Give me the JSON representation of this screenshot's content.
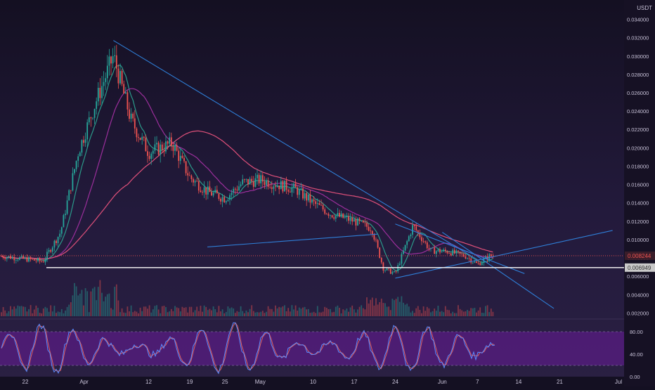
{
  "currency": "USDT",
  "price_ticks": [
    "0.034000",
    "0.032000",
    "0.030000",
    "0.028000",
    "0.026000",
    "0.024000",
    "0.022000",
    "0.020000",
    "0.018000",
    "0.016000",
    "0.014000",
    "0.012000",
    "0.010000",
    "0.008000",
    "0.006000",
    "0.004000",
    "0.002000"
  ],
  "osc_ticks": [
    "80.00",
    "40.00",
    "0.00"
  ],
  "date_ticks": [
    "22",
    "Apr",
    "12",
    "19",
    "25",
    "May",
    "10",
    "17",
    "24",
    "Jun",
    "7",
    "14",
    "21",
    "Jul"
  ],
  "current_price_label": "0.008244",
  "horizontal_level_label": "0.006949",
  "colors": {
    "background": "#1a1530",
    "candle_up": "#26a69a",
    "candle_down": "#ef5350",
    "trendline": "#2f7fd8",
    "ma_short": "#2b9a8a",
    "ma_mid": "#9c2f9c",
    "ma_long": "#e0507a",
    "horizontal_line": "#ffffff",
    "osc_band": "#6a1b9a",
    "osc_k": "#5b8cff",
    "osc_d": "#e06060"
  },
  "chart_data": {
    "type": "candlestick",
    "title": "",
    "ylabel": "USDT",
    "ylim": [
      0.0015,
      0.0358
    ],
    "y_scale": "linear",
    "grid": false,
    "horizontal_level": 0.006949,
    "current_price": 0.008244,
    "close_series": {
      "x": [
        "Mar 18",
        "Mar 22",
        "Mar 25",
        "Mar 28",
        "Mar 31",
        "Apr 3",
        "Apr 6",
        "Apr 9",
        "Apr 12",
        "Apr 16",
        "Apr 19",
        "Apr 22",
        "Apr 25",
        "Apr 28",
        "May 1",
        "May 4",
        "May 7",
        "May 10",
        "May 13",
        "May 17",
        "May 20",
        "May 22",
        "May 24",
        "May 27",
        "May 30",
        "Jun 2",
        "Jun 5",
        "Jun 7",
        "Jun 9"
      ],
      "close": [
        0.0082,
        0.0079,
        0.0076,
        0.0108,
        0.0195,
        0.025,
        0.03,
        0.023,
        0.0195,
        0.0205,
        0.0168,
        0.0152,
        0.0145,
        0.0162,
        0.0165,
        0.016,
        0.0155,
        0.014,
        0.0128,
        0.012,
        0.0112,
        0.0068,
        0.0063,
        0.0115,
        0.0088,
        0.0087,
        0.0082,
        0.0073,
        0.0082
      ]
    },
    "trendlines": [
      {
        "from": [
          "Apr 6",
          0.0317
        ],
        "to": [
          "Jun 7",
          0.0078
        ]
      },
      {
        "from": [
          "Apr 22",
          0.0092
        ],
        "to": [
          "May 21",
          0.0106
        ]
      },
      {
        "from": [
          "May 24",
          0.0058
        ],
        "to": [
          "Jun 30",
          0.011
        ]
      },
      {
        "from": [
          "May 24",
          0.0117
        ],
        "to": [
          "Jun 15",
          0.0063
        ]
      },
      {
        "from": [
          "Jun 1",
          0.0108
        ],
        "to": [
          "Jun 20",
          0.0025
        ]
      }
    ],
    "oscillator": {
      "ylim": [
        0,
        100
      ],
      "band": [
        20,
        80
      ]
    }
  }
}
